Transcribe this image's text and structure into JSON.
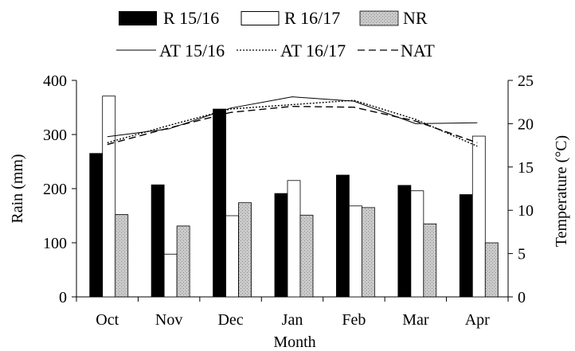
{
  "chart_data": {
    "type": "bar+line",
    "xlabel": "Month",
    "ylabel_left": "Rain (mm)",
    "ylabel_right": "Temperature  (°C)",
    "ylim_left": [
      0,
      400
    ],
    "ylim_right": [
      0,
      25
    ],
    "yticks_left": [
      "0",
      "100",
      "200",
      "300",
      "400"
    ],
    "yticks_right": [
      "0",
      "5",
      "10",
      "15",
      "20",
      "25"
    ],
    "grid": false,
    "legend_position": "top",
    "categories": [
      "Oct",
      "Nov",
      "Dec",
      "Jan",
      "Feb",
      "Mar",
      "Apr"
    ],
    "bar_series": [
      {
        "name": "R 15/16",
        "style": "solid-black",
        "values": [
          265,
          207,
          347,
          191,
          225,
          206,
          189
        ]
      },
      {
        "name": "R 16/17",
        "style": "white-outline",
        "values": [
          371,
          79,
          150,
          215,
          168,
          196,
          297
        ]
      },
      {
        "name": "NR",
        "style": "hatched-gray",
        "values": [
          152,
          131,
          174,
          151,
          165,
          135,
          100
        ]
      }
    ],
    "line_series": [
      {
        "name": "AT 15/16",
        "style": "solid",
        "values": [
          18.5,
          19.4,
          21.8,
          23.1,
          22.6,
          20.0,
          20.1
        ]
      },
      {
        "name": "AT 16/17",
        "style": "dotted",
        "values": [
          17.8,
          19.8,
          21.7,
          22.2,
          22.7,
          20.5,
          17.4
        ]
      },
      {
        "name": "NAT",
        "style": "dashed",
        "values": [
          17.6,
          19.5,
          21.3,
          22.0,
          21.9,
          20.3,
          17.8
        ]
      }
    ],
    "colors": {
      "bar_solid": "#000000",
      "bar_hatch_bg": "#d9d9d9",
      "bar_hatch_fg": "#6a6a6a",
      "axis": "#000000"
    }
  }
}
